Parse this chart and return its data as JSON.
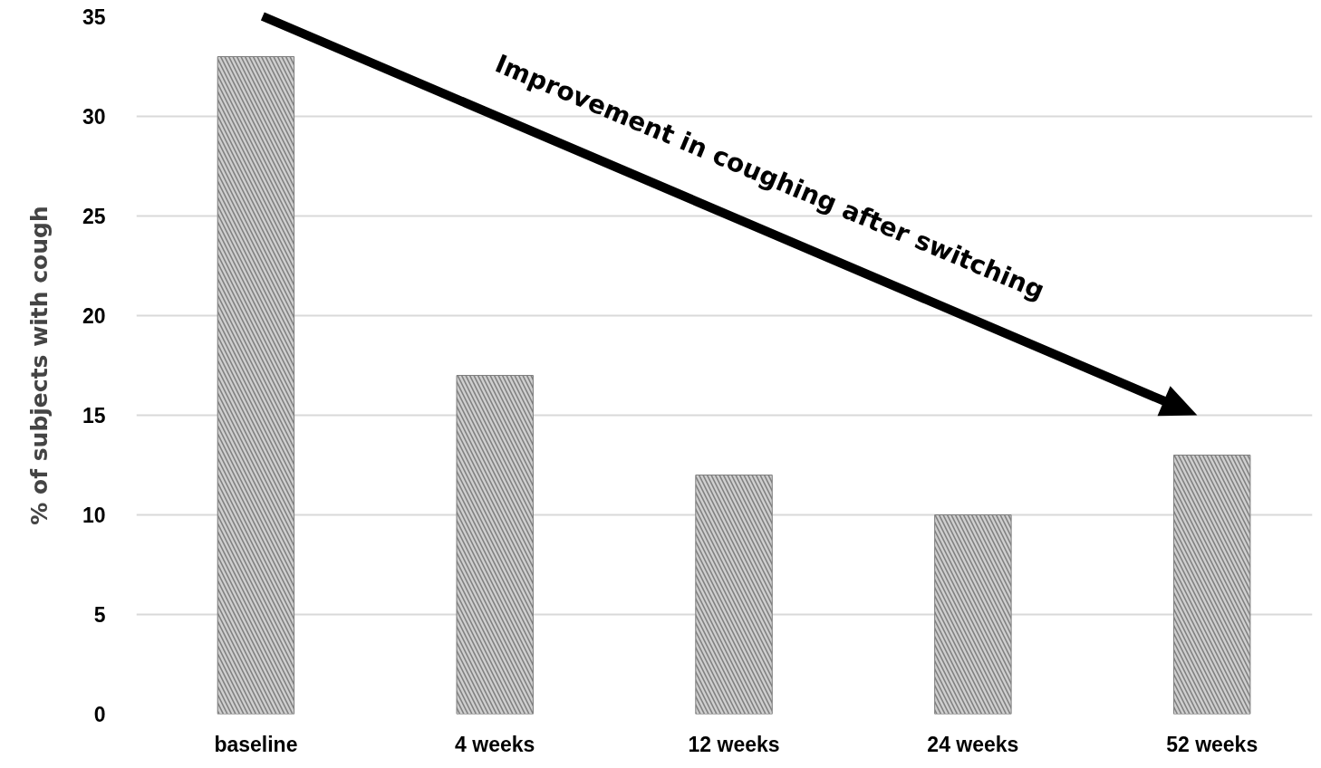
{
  "chart_data": {
    "type": "bar",
    "ylabel": "% of subjects with cough",
    "categories": [
      "baseline",
      "4 weeks",
      "12 weeks",
      "24 weeks",
      "52 weeks"
    ],
    "values": [
      33,
      17,
      12,
      10,
      13
    ],
    "color": "#7f7f7f",
    "ylim": [
      0,
      35
    ],
    "yticks": [
      0,
      5,
      10,
      15,
      20,
      25,
      30,
      35
    ],
    "grid": "y",
    "annotations": [
      "Improvement in coughing after switching"
    ]
  }
}
